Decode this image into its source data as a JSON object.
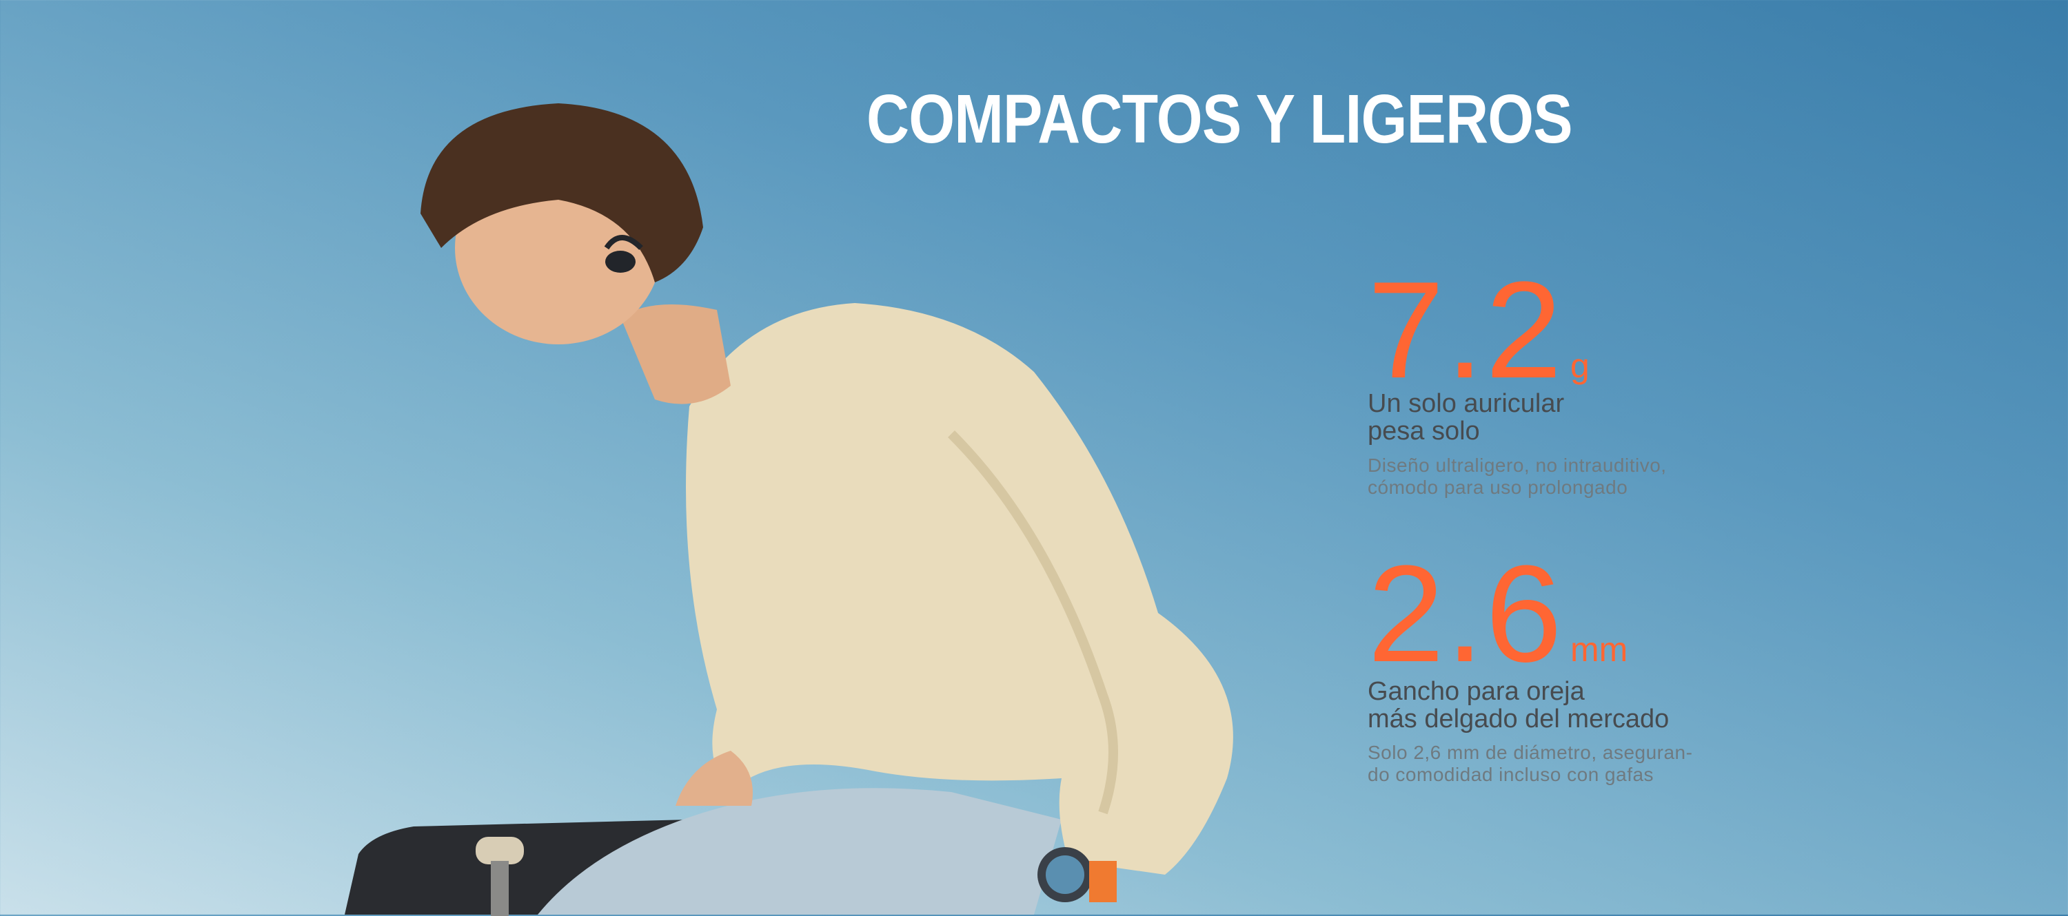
{
  "title": "COMPACTOS Y LIGEROS",
  "accent_color": "#ff6633",
  "specs": [
    {
      "value": "7.2",
      "unit": "g",
      "heading_lines": [
        "Un solo auricular",
        "pesa solo"
      ],
      "description_lines": [
        "Diseño ultraligero, no intrauditivo,",
        "cómodo para uso prolongado"
      ]
    },
    {
      "value": "2.6",
      "unit": "mm",
      "heading_lines": [
        "Gancho para oreja",
        "más delgado del mercado"
      ],
      "description_lines": [
        "Solo 2,6 mm de diámetro, aseguran-",
        "do comodidad incluso con gafas"
      ]
    }
  ]
}
